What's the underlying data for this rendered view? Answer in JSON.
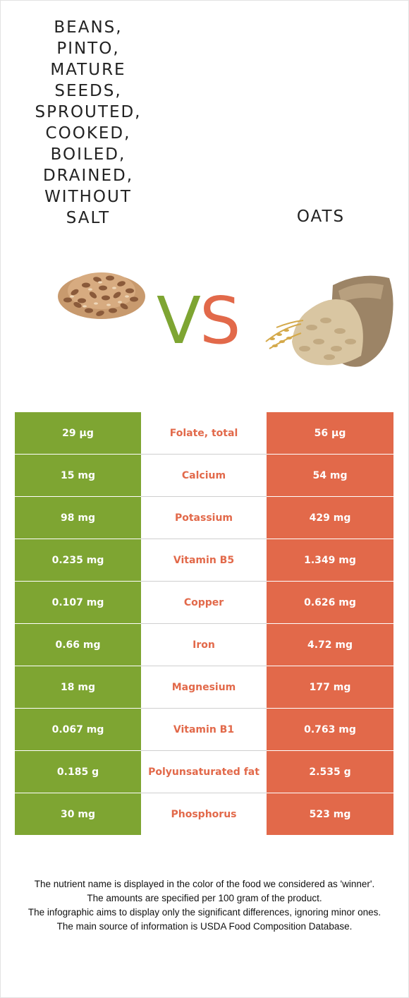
{
  "left_food": {
    "title_lines": [
      "BEANS,",
      "PINTO,",
      "MATURE",
      "SEEDS,",
      "SPROUTED,",
      "COOKED,",
      "BOILED,",
      "DRAINED,",
      "WITHOUT",
      "SALT"
    ],
    "image": "pinto-beans-pile",
    "color": "#7ea532"
  },
  "right_food": {
    "title": "OATS",
    "image": "oats-sack",
    "color": "#e2694a"
  },
  "vs": {
    "v": "V",
    "s": "S"
  },
  "rows": [
    {
      "left": "29 µg",
      "nutrient": "Folate, total",
      "right": "56 µg"
    },
    {
      "left": "15 mg",
      "nutrient": "Calcium",
      "right": "54 mg"
    },
    {
      "left": "98 mg",
      "nutrient": "Potassium",
      "right": "429 mg"
    },
    {
      "left": "0.235 mg",
      "nutrient": "Vitamin B5",
      "right": "1.349 mg"
    },
    {
      "left": "0.107 mg",
      "nutrient": "Copper",
      "right": "0.626 mg"
    },
    {
      "left": "0.66 mg",
      "nutrient": "Iron",
      "right": "4.72 mg"
    },
    {
      "left": "18 mg",
      "nutrient": "Magnesium",
      "right": "177 mg"
    },
    {
      "left": "0.067 mg",
      "nutrient": "Vitamin B1",
      "right": "0.763 mg"
    },
    {
      "left": "0.185 g",
      "nutrient": "Polyunsaturated fat",
      "right": "2.535 g"
    },
    {
      "left": "30 mg",
      "nutrient": "Phosphorus",
      "right": "523 mg"
    }
  ],
  "notes": [
    "The nutrient name is displayed in the color of the food we considered as 'winner'.",
    "The amounts are specified per 100 gram of the product.",
    "The infographic aims to display only the significant differences, ignoring minor ones.",
    "The main source of information is USDA Food Composition Database."
  ]
}
